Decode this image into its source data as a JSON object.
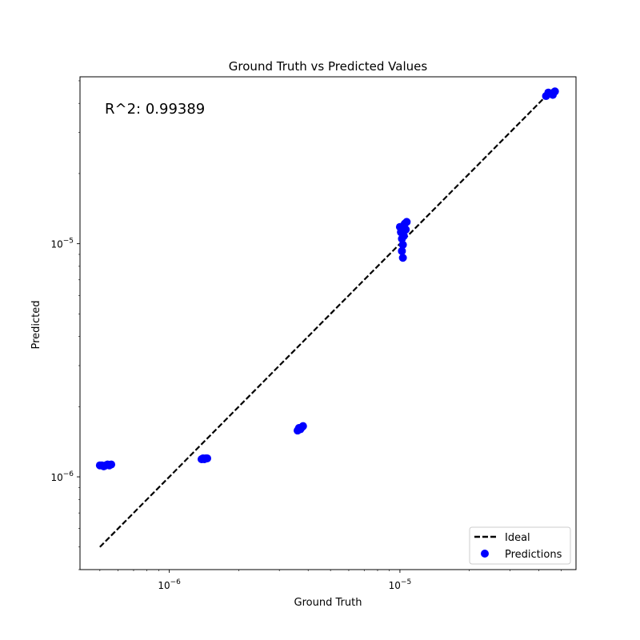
{
  "chart_data": {
    "type": "scatter",
    "title": "Ground Truth vs Predicted Values",
    "xlabel": "Ground Truth",
    "ylabel": "Predicted",
    "xscale": "log",
    "yscale": "log",
    "xlim": [
      4.1e-07,
      5.8e-05
    ],
    "ylim": [
      4e-07,
      5.2e-05
    ],
    "grid": false,
    "legend_position": "lower-right",
    "x_major_ticks": [
      {
        "value": 1e-06,
        "mantissa": "10",
        "exponent": "−6"
      },
      {
        "value": 1e-05,
        "mantissa": "10",
        "exponent": "−5"
      }
    ],
    "y_major_ticks": [
      {
        "value": 1e-06,
        "mantissa": "10",
        "exponent": "−6"
      },
      {
        "value": 1e-05,
        "mantissa": "10",
        "exponent": "−5"
      }
    ],
    "annotation": "R^2: 0.99389",
    "series": [
      {
        "name": "Ideal",
        "kind": "line",
        "style": "dashed",
        "color": "#000000",
        "x": [
          5e-07,
          4.6e-05
        ],
        "y": [
          5e-07,
          4.6e-05
        ]
      },
      {
        "name": "Predictions",
        "kind": "scatter",
        "color": "#0000ff",
        "x": [
          5e-07,
          5.1e-07,
          5.2e-07,
          5.3e-07,
          5.4e-07,
          5.5e-07,
          5.6e-07,
          1.38e-06,
          1.4e-06,
          1.42e-06,
          1.44e-06,
          1.46e-06,
          3.6e-06,
          3.65e-06,
          3.7e-06,
          3.75e-06,
          3.8e-06,
          1e-05,
          1.01e-05,
          1.02e-05,
          1.03e-05,
          1.04e-05,
          1.05e-05,
          1.06e-05,
          1.07e-05,
          1.02e-05,
          1.03e-05,
          1.04e-05,
          4.3e-05,
          4.4e-05,
          4.5e-05,
          4.6e-05,
          4.7e-05
        ],
        "y": [
          1.12e-06,
          1.12e-06,
          1.11e-06,
          1.12e-06,
          1.13e-06,
          1.12e-06,
          1.13e-06,
          1.19e-06,
          1.2e-06,
          1.19e-06,
          1.2e-06,
          1.2e-06,
          1.58e-06,
          1.62e-06,
          1.6e-06,
          1.63e-06,
          1.65e-06,
          1.18e-05,
          1.12e-05,
          1.05e-05,
          9.9e-06,
          1.2e-05,
          1.22e-05,
          1.15e-05,
          1.24e-05,
          9.3e-06,
          8.7e-06,
          1.08e-05,
          4.3e-05,
          4.45e-05,
          4.4e-05,
          4.35e-05,
          4.5e-05
        ]
      }
    ]
  }
}
